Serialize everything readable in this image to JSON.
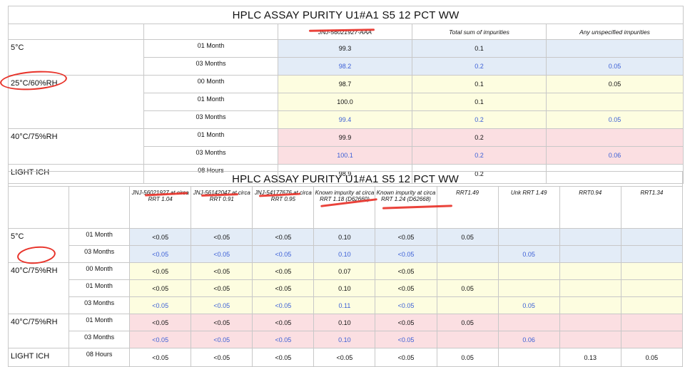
{
  "table1": {
    "title": "HPLC ASSAY PURITY U1#A1 S5 12 PCT WW",
    "headers": [
      "JNJ-56021927-AAA",
      "Total sum of impurities",
      "Any unspecified impurities"
    ],
    "conditions": [
      "5°C",
      "25°C/60%RH",
      "40°C/75%RH",
      "LIGHT ICH"
    ],
    "rows": [
      {
        "time": "01 Month",
        "v": [
          "99.3",
          "0.1",
          ""
        ]
      },
      {
        "time": "03 Months",
        "v": [
          "98.2",
          "0.2",
          "0.05"
        ]
      },
      {
        "time": "00 Month",
        "v": [
          "98.7",
          "0.1",
          "0.05"
        ]
      },
      {
        "time": "01 Month",
        "v": [
          "100.0",
          "0.1",
          ""
        ]
      },
      {
        "time": "03 Months",
        "v": [
          "99.4",
          "0.2",
          "0.05"
        ]
      },
      {
        "time": "01 Month",
        "v": [
          "99.9",
          "0.2",
          ""
        ]
      },
      {
        "time": "03 Months",
        "v": [
          "100.1",
          "0.2",
          "0.06"
        ]
      },
      {
        "time": "08 Hours",
        "v": [
          "98.9",
          "0.2",
          ""
        ]
      }
    ]
  },
  "table2": {
    "title": "HPLC ASSAY PURITY U1#A1 S5 12 PCT WW",
    "headers": [
      "JNJ-56021927 at circa RRT 1.04",
      "JNJ-56142047 at circa RRT 0.91",
      "JNJ-54177676 at circa RRT 0.95",
      "Known impurity at circa RRT 1.18 (D62660)",
      "Known impurity at circa RRT 1.24 (D62668)",
      "RRT1.49",
      "Unk RRT 1.49",
      "RRT0.94",
      "RRT1.34"
    ],
    "conditions": [
      "5°C",
      "40°C/75%RH",
      "40°C/75%RH",
      "LIGHT ICH"
    ],
    "rows": [
      {
        "time": "01 Month",
        "v": [
          "<0.05",
          "<0.05",
          "<0.05",
          "0.10",
          "<0.05",
          "0.05",
          "",
          "",
          ""
        ]
      },
      {
        "time": "03 Months",
        "v": [
          "<0.05",
          "<0.05",
          "<0.05",
          "0.10",
          "<0.05",
          "",
          "0.05",
          "",
          ""
        ]
      },
      {
        "time": "00 Month",
        "v": [
          "<0.05",
          "<0.05",
          "<0.05",
          "0.07",
          "<0.05",
          "",
          "",
          "",
          ""
        ]
      },
      {
        "time": "01 Month",
        "v": [
          "<0.05",
          "<0.05",
          "<0.05",
          "0.10",
          "<0.05",
          "0.05",
          "",
          "",
          ""
        ]
      },
      {
        "time": "03 Months",
        "v": [
          "<0.05",
          "<0.05",
          "<0.05",
          "0.11",
          "<0.05",
          "",
          "0.05",
          "",
          ""
        ]
      },
      {
        "time": "01 Month",
        "v": [
          "<0.05",
          "<0.05",
          "<0.05",
          "0.10",
          "<0.05",
          "0.05",
          "",
          "",
          ""
        ]
      },
      {
        "time": "03 Months",
        "v": [
          "<0.05",
          "<0.05",
          "<0.05",
          "0.10",
          "<0.05",
          "",
          "0.06",
          "",
          ""
        ]
      },
      {
        "time": "08 Hours",
        "v": [
          "<0.05",
          "<0.05",
          "<0.05",
          "<0.05",
          "<0.05",
          "0.05",
          "",
          "0.13",
          "0.05"
        ]
      }
    ]
  },
  "colors": {
    "blue_band": "#e3ecf7",
    "yellow_band": "#fdfde0",
    "pink_band": "#fbdfe2",
    "value_blue": "#3b5fd6",
    "annotation_red": "#e8332a"
  }
}
